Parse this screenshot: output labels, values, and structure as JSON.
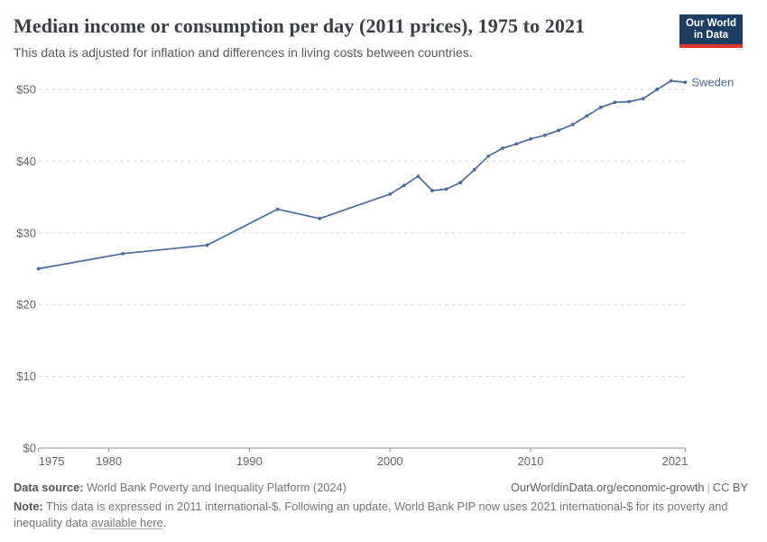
{
  "header": {
    "title": "Median income or consumption per day (2011 prices), 1975 to 2021",
    "subtitle": "This data is adjusted for inflation and differences in living costs between countries.",
    "logo": {
      "line1": "Our World",
      "line2": "in Data"
    }
  },
  "chart_data": {
    "type": "line",
    "title": "Median income or consumption per day (2011 prices), 1975 to 2021",
    "xlabel": "",
    "ylabel": "",
    "xlim": [
      1975,
      2021
    ],
    "ylim": [
      0,
      52
    ],
    "xticks": [
      1975,
      1980,
      1990,
      2000,
      2010,
      2021
    ],
    "yticks": [
      0,
      10,
      20,
      30,
      40,
      50
    ],
    "ytick_prefix": "$",
    "grid": "horizontal-dashed",
    "legend_position": "end-of-line-label",
    "series": [
      {
        "name": "Sweden",
        "color": "#4c6a9c",
        "points": [
          [
            1975,
            25.0
          ],
          [
            1981,
            27.1
          ],
          [
            1987,
            28.3
          ],
          [
            1992,
            33.3
          ],
          [
            1995,
            32.0
          ],
          [
            2000,
            35.4
          ],
          [
            2001,
            36.6
          ],
          [
            2002,
            37.9
          ],
          [
            2003,
            35.9
          ],
          [
            2004,
            36.1
          ],
          [
            2005,
            37.0
          ],
          [
            2006,
            38.8
          ],
          [
            2007,
            40.7
          ],
          [
            2008,
            41.8
          ],
          [
            2009,
            42.4
          ],
          [
            2010,
            43.1
          ],
          [
            2011,
            43.6
          ],
          [
            2012,
            44.3
          ],
          [
            2013,
            45.1
          ],
          [
            2014,
            46.3
          ],
          [
            2015,
            47.5
          ],
          [
            2016,
            48.2
          ],
          [
            2017,
            48.3
          ],
          [
            2018,
            48.7
          ],
          [
            2019,
            50.0
          ],
          [
            2020,
            51.2
          ],
          [
            2021,
            51.0
          ]
        ]
      }
    ]
  },
  "footer": {
    "source_label": "Data source:",
    "source_text": " World Bank Poverty and Inequality Platform (2024)",
    "site_link": "OurWorldinData.org/economic-growth",
    "separator": "|",
    "license": "CC BY",
    "note_label": "Note:",
    "note_text": " This data is expressed in 2011 international-$. Following an update, World Bank PIP now uses 2021 international-$ for its poverty and inequality data ",
    "note_link": "available here",
    "note_suffix": "."
  },
  "colors": {
    "accent_line": "#4c6a9c",
    "logo_bg": "#1d3d63",
    "logo_stripe": "#e0342c",
    "gridline": "#dadada",
    "axis": "#8f8f8f",
    "tick_text": "#666666"
  }
}
